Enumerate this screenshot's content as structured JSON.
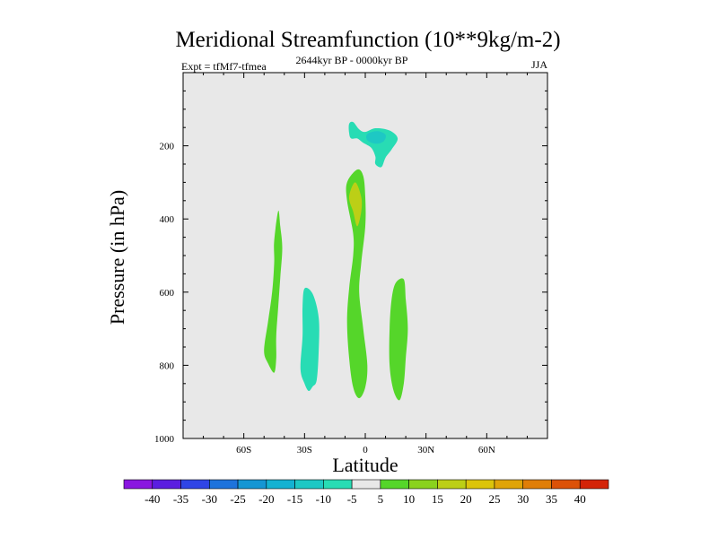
{
  "chart_data": {
    "type": "heatmap",
    "title": "Meridional Streamfunction (10**9kg/m-2)",
    "left_label": "Expt = tfMf7-tfmea",
    "center_label": "2644kyr BP - 0000kyr BP",
    "right_label": "JJA",
    "xlabel": "Latitude",
    "ylabel": "Pressure (in hPa)",
    "xlim": [
      -90,
      90
    ],
    "ylim": [
      1000,
      0
    ],
    "x_ticks": [
      {
        "value": -60,
        "label": "60S"
      },
      {
        "value": -30,
        "label": "30S"
      },
      {
        "value": 0,
        "label": "0"
      },
      {
        "value": 30,
        "label": "30N"
      },
      {
        "value": 60,
        "label": "60N"
      }
    ],
    "y_ticks": [
      {
        "value": 200,
        "label": "200"
      },
      {
        "value": 400,
        "label": "400"
      },
      {
        "value": 600,
        "label": "600"
      },
      {
        "value": 800,
        "label": "800"
      },
      {
        "value": 1000,
        "label": "1000"
      }
    ],
    "colorbar": {
      "levels": [
        "-40",
        "-35",
        "-30",
        "-25",
        "-20",
        "-15",
        "-10",
        "-5",
        "5",
        "10",
        "15",
        "20",
        "25",
        "30",
        "35",
        "40"
      ],
      "colors": [
        "#8a16e0",
        "#5b1ee0",
        "#2f45e6",
        "#1e73dc",
        "#1596d4",
        "#14b2d2",
        "#1ec8c4",
        "#28dcb4",
        "#e8e8e8",
        "#55d62a",
        "#8ad21e",
        "#bccf16",
        "#dcc40a",
        "#e0a408",
        "#e07e08",
        "#dc5208",
        "#d42408"
      ],
      "background_level_color": "#e8e8e8"
    },
    "features": [
      {
        "name": "upper-tropical-negative-cell",
        "sign": "negative",
        "color": "#28dcb4",
        "outline": [
          [
            -6,
            135
          ],
          [
            -3,
            155
          ],
          [
            0,
            162
          ],
          [
            5,
            152
          ],
          [
            12,
            158
          ],
          [
            16,
            180
          ],
          [
            13,
            210
          ],
          [
            10,
            232
          ],
          [
            8,
            258
          ],
          [
            5,
            250
          ],
          [
            5,
            230
          ],
          [
            3,
            206
          ],
          [
            -1,
            192
          ],
          [
            -4,
            180
          ],
          [
            -7,
            180
          ],
          [
            -8,
            165
          ],
          [
            -8,
            140
          ]
        ]
      },
      {
        "name": "upper-tropical-core",
        "sign": "negative",
        "color": "#1ec8c4",
        "outline": [
          [
            1,
            168
          ],
          [
            6,
            160
          ],
          [
            10,
            170
          ],
          [
            9,
            188
          ],
          [
            5,
            194
          ],
          [
            1,
            185
          ]
        ]
      },
      {
        "name": "equatorial-positive-column",
        "sign": "positive",
        "color": "#55d62a",
        "outline": [
          [
            -4,
            265
          ],
          [
            -1,
            282
          ],
          [
            0,
            340
          ],
          [
            0,
            420
          ],
          [
            -2,
            520
          ],
          [
            -3,
            600
          ],
          [
            -1,
            700
          ],
          [
            1,
            800
          ],
          [
            0,
            860
          ],
          [
            -3,
            890
          ],
          [
            -6,
            860
          ],
          [
            -8,
            780
          ],
          [
            -9,
            680
          ],
          [
            -8,
            590
          ],
          [
            -6,
            500
          ],
          [
            -6,
            440
          ],
          [
            -9,
            350
          ],
          [
            -9,
            300
          ]
        ]
      },
      {
        "name": "equatorial-positive-core",
        "sign": "positive",
        "color": "#bccf16",
        "outline": [
          [
            -5,
            300
          ],
          [
            -2,
            340
          ],
          [
            -2,
            380
          ],
          [
            -4,
            420
          ],
          [
            -6,
            380
          ],
          [
            -8,
            340
          ]
        ]
      },
      {
        "name": "southern-positive-cell",
        "sign": "positive",
        "color": "#55d62a",
        "outline": [
          [
            -43,
            378
          ],
          [
            -42,
            420
          ],
          [
            -41,
            480
          ],
          [
            -42,
            560
          ],
          [
            -43,
            640
          ],
          [
            -44,
            720
          ],
          [
            -44,
            780
          ],
          [
            -45,
            820
          ],
          [
            -48,
            795
          ],
          [
            -50,
            760
          ],
          [
            -48,
            680
          ],
          [
            -46,
            600
          ],
          [
            -45,
            520
          ],
          [
            -45,
            460
          ]
        ]
      },
      {
        "name": "southern-negative-cell",
        "sign": "negative",
        "color": "#28dcb4",
        "outline": [
          [
            -30,
            590
          ],
          [
            -26,
            605
          ],
          [
            -23,
            670
          ],
          [
            -23,
            760
          ],
          [
            -24,
            840
          ],
          [
            -26,
            858
          ],
          [
            -28,
            870
          ],
          [
            -30,
            850
          ],
          [
            -32,
            810
          ],
          [
            -31,
            720
          ],
          [
            -31,
            640
          ]
        ]
      },
      {
        "name": "northern-positive-cell",
        "sign": "positive",
        "color": "#55d62a",
        "outline": [
          [
            15,
            575
          ],
          [
            19,
            565
          ],
          [
            20,
            620
          ],
          [
            21,
            700
          ],
          [
            20,
            780
          ],
          [
            19,
            850
          ],
          [
            17,
            895
          ],
          [
            14,
            870
          ],
          [
            12,
            800
          ],
          [
            12,
            700
          ],
          [
            13,
            620
          ]
        ]
      }
    ]
  }
}
